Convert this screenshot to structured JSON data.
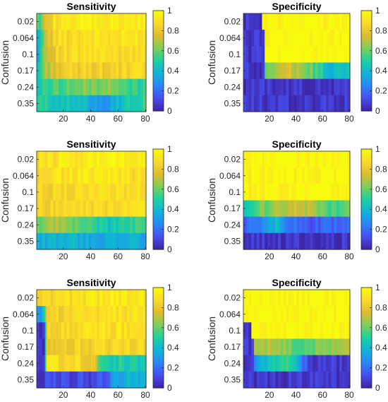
{
  "chart_data": [
    {
      "type": "heatmap",
      "title": "Sensitivity",
      "ylabel": "Confusion",
      "y_categories": [
        "0.02",
        "0.064",
        "0.1",
        "0.17",
        "0.24",
        "0.35"
      ],
      "xlim": [
        1,
        80
      ],
      "x_ticks": [
        20,
        40,
        60,
        80
      ],
      "colorbar": {
        "min": 0,
        "max": 1,
        "ticks": [
          "0",
          "0.2",
          "0.4",
          "0.6",
          "0.8",
          "1"
        ]
      },
      "row_profiles": [
        [
          [
            1,
            0.7
          ],
          [
            3,
            0.55
          ],
          [
            6,
            0.8
          ],
          [
            15,
            0.9
          ],
          [
            40,
            0.95
          ],
          [
            60,
            0.92
          ],
          [
            80,
            0.95
          ]
        ],
        [
          [
            1,
            0.3
          ],
          [
            3,
            0.4
          ],
          [
            6,
            0.7
          ],
          [
            15,
            0.88
          ],
          [
            40,
            0.92
          ],
          [
            60,
            0.9
          ],
          [
            80,
            0.93
          ]
        ],
        [
          [
            1,
            0.35
          ],
          [
            3,
            0.45
          ],
          [
            6,
            0.7
          ],
          [
            15,
            0.85
          ],
          [
            40,
            0.9
          ],
          [
            60,
            0.88
          ],
          [
            80,
            0.92
          ]
        ],
        [
          [
            1,
            0.4
          ],
          [
            3,
            0.5
          ],
          [
            6,
            0.65
          ],
          [
            15,
            0.8
          ],
          [
            40,
            0.85
          ],
          [
            60,
            0.83
          ],
          [
            80,
            0.88
          ]
        ],
        [
          [
            1,
            0.45
          ],
          [
            10,
            0.55
          ],
          [
            30,
            0.6
          ],
          [
            50,
            0.65
          ],
          [
            65,
            0.55
          ],
          [
            80,
            0.5
          ]
        ],
        [
          [
            1,
            0.5
          ],
          [
            20,
            0.45
          ],
          [
            35,
            0.4
          ],
          [
            50,
            0.3
          ],
          [
            60,
            0.4
          ],
          [
            80,
            0.55
          ]
        ]
      ]
    },
    {
      "type": "heatmap",
      "title": "Specificity",
      "ylabel": "Confusion",
      "y_categories": [
        "0.02",
        "0.064",
        "0.1",
        "0.17",
        "0.24",
        "0.35"
      ],
      "xlim": [
        1,
        80
      ],
      "x_ticks": [
        20,
        40,
        60,
        80
      ],
      "colorbar": {
        "min": 0,
        "max": 1,
        "ticks": [
          "0",
          "0.2",
          "0.4",
          "0.6",
          "0.8",
          "1"
        ]
      },
      "row_profiles": [
        [
          [
            1,
            0.05
          ],
          [
            14,
            0.05
          ],
          [
            15,
            1
          ],
          [
            80,
            1
          ]
        ],
        [
          [
            1,
            0.05
          ],
          [
            16,
            0.05
          ],
          [
            17,
            1
          ],
          [
            80,
            1
          ]
        ],
        [
          [
            1,
            0.05
          ],
          [
            16,
            0.05
          ],
          [
            17,
            1
          ],
          [
            80,
            1
          ]
        ],
        [
          [
            1,
            0.05
          ],
          [
            16,
            0.05
          ],
          [
            17,
            0.6
          ],
          [
            30,
            0.75
          ],
          [
            45,
            0.7
          ],
          [
            55,
            0.55
          ],
          [
            65,
            0.4
          ],
          [
            80,
            0.45
          ]
        ],
        [
          [
            1,
            0.05
          ],
          [
            80,
            0.05
          ]
        ],
        [
          [
            1,
            0.05
          ],
          [
            80,
            0.05
          ]
        ]
      ]
    },
    {
      "type": "heatmap",
      "title": "Sensitivity",
      "ylabel": "Confusion",
      "y_categories": [
        "0.02",
        "0.064",
        "0.1",
        "0.17",
        "0.24",
        "0.35"
      ],
      "xlim": [
        1,
        80
      ],
      "x_ticks": [
        20,
        40,
        60,
        80
      ],
      "colorbar": {
        "min": 0,
        "max": 1,
        "ticks": [
          "0",
          "0.2",
          "0.4",
          "0.6",
          "0.8",
          "1"
        ]
      },
      "row_profiles": [
        [
          [
            1,
            0.9
          ],
          [
            40,
            0.95
          ],
          [
            80,
            0.93
          ]
        ],
        [
          [
            1,
            0.88
          ],
          [
            40,
            0.92
          ],
          [
            80,
            0.9
          ]
        ],
        [
          [
            1,
            0.85
          ],
          [
            40,
            0.9
          ],
          [
            80,
            0.88
          ]
        ],
        [
          [
            1,
            0.85
          ],
          [
            40,
            0.88
          ],
          [
            80,
            0.9
          ]
        ],
        [
          [
            1,
            0.6
          ],
          [
            15,
            0.7
          ],
          [
            35,
            0.55
          ],
          [
            55,
            0.45
          ],
          [
            70,
            0.55
          ],
          [
            80,
            0.5
          ]
        ],
        [
          [
            1,
            0.35
          ],
          [
            25,
            0.4
          ],
          [
            45,
            0.35
          ],
          [
            60,
            0.4
          ],
          [
            80,
            0.35
          ]
        ]
      ]
    },
    {
      "type": "heatmap",
      "title": "Specificity",
      "ylabel": "Confusion",
      "y_categories": [
        "0.02",
        "0.064",
        "0.1",
        "0.17",
        "0.24",
        "0.35"
      ],
      "xlim": [
        1,
        80
      ],
      "x_ticks": [
        20,
        40,
        60,
        80
      ],
      "colorbar": {
        "min": 0,
        "max": 1,
        "ticks": [
          "0",
          "0.2",
          "0.4",
          "0.6",
          "0.8",
          "1"
        ]
      },
      "row_profiles": [
        [
          [
            1,
            1
          ],
          [
            80,
            1
          ]
        ],
        [
          [
            1,
            0.98
          ],
          [
            80,
            1
          ]
        ],
        [
          [
            1,
            0.98
          ],
          [
            80,
            1
          ]
        ],
        [
          [
            1,
            0.45
          ],
          [
            20,
            0.65
          ],
          [
            35,
            0.75
          ],
          [
            50,
            0.7
          ],
          [
            65,
            0.55
          ],
          [
            80,
            0.6
          ]
        ],
        [
          [
            1,
            0.15
          ],
          [
            15,
            0.25
          ],
          [
            25,
            0.4
          ],
          [
            35,
            0.2
          ],
          [
            50,
            0.15
          ],
          [
            80,
            0.2
          ]
        ],
        [
          [
            1,
            0.05
          ],
          [
            80,
            0.05
          ]
        ]
      ]
    },
    {
      "type": "heatmap",
      "title": "Sensitivity",
      "ylabel": "Confusion",
      "y_categories": [
        "0.02",
        "0.064",
        "0.1",
        "0.17",
        "0.24",
        "0.35"
      ],
      "xlim": [
        1,
        80
      ],
      "x_ticks": [
        20,
        40,
        60,
        80
      ],
      "colorbar": {
        "min": 0,
        "max": 1,
        "ticks": [
          "0",
          "0.2",
          "0.4",
          "0.6",
          "0.8",
          "1"
        ]
      },
      "row_profiles": [
        [
          [
            1,
            0.85
          ],
          [
            40,
            0.92
          ],
          [
            80,
            0.95
          ]
        ],
        [
          [
            1,
            0.3
          ],
          [
            6,
            0.4
          ],
          [
            8,
            0.8
          ],
          [
            40,
            0.9
          ],
          [
            80,
            0.92
          ]
        ],
        [
          [
            1,
            0.05
          ],
          [
            6,
            0.05
          ],
          [
            8,
            0.85
          ],
          [
            40,
            0.9
          ],
          [
            80,
            0.9
          ]
        ],
        [
          [
            1,
            0.05
          ],
          [
            6,
            0.05
          ],
          [
            8,
            0.8
          ],
          [
            40,
            0.85
          ],
          [
            80,
            0.88
          ]
        ],
        [
          [
            1,
            0.05
          ],
          [
            6,
            0.05
          ],
          [
            8,
            0.9
          ],
          [
            40,
            0.85
          ],
          [
            50,
            0.5
          ],
          [
            80,
            0.45
          ]
        ],
        [
          [
            1,
            0.05
          ],
          [
            6,
            0.05
          ],
          [
            8,
            0.1
          ],
          [
            40,
            0.1
          ],
          [
            50,
            0.15
          ],
          [
            60,
            0.35
          ],
          [
            80,
            0.4
          ]
        ]
      ]
    },
    {
      "type": "heatmap",
      "title": "Specificity",
      "ylabel": "Confusion",
      "y_categories": [
        "0.02",
        "0.064",
        "0.1",
        "0.17",
        "0.24",
        "0.35"
      ],
      "xlim": [
        1,
        80
      ],
      "x_ticks": [
        20,
        40,
        60,
        80
      ],
      "colorbar": {
        "min": 0,
        "max": 1,
        "ticks": [
          "0",
          "0.2",
          "0.4",
          "0.6",
          "0.8",
          "1"
        ]
      },
      "row_profiles": [
        [
          [
            1,
            1
          ],
          [
            80,
            1
          ]
        ],
        [
          [
            1,
            1
          ],
          [
            80,
            1
          ]
        ],
        [
          [
            1,
            0.05
          ],
          [
            6,
            0.05
          ],
          [
            7,
            1
          ],
          [
            80,
            1
          ]
        ],
        [
          [
            1,
            0.05
          ],
          [
            6,
            0.05
          ],
          [
            8,
            0.05
          ],
          [
            9,
            0.65
          ],
          [
            25,
            0.7
          ],
          [
            45,
            0.55
          ],
          [
            60,
            0.65
          ],
          [
            80,
            0.7
          ]
        ],
        [
          [
            1,
            0.05
          ],
          [
            6,
            0.05
          ],
          [
            8,
            0.05
          ],
          [
            9,
            0.3
          ],
          [
            20,
            0.4
          ],
          [
            30,
            0.55
          ],
          [
            40,
            0.4
          ],
          [
            50,
            0.05
          ],
          [
            80,
            0.05
          ]
        ],
        [
          [
            1,
            0.05
          ],
          [
            80,
            0.05
          ]
        ]
      ]
    }
  ]
}
